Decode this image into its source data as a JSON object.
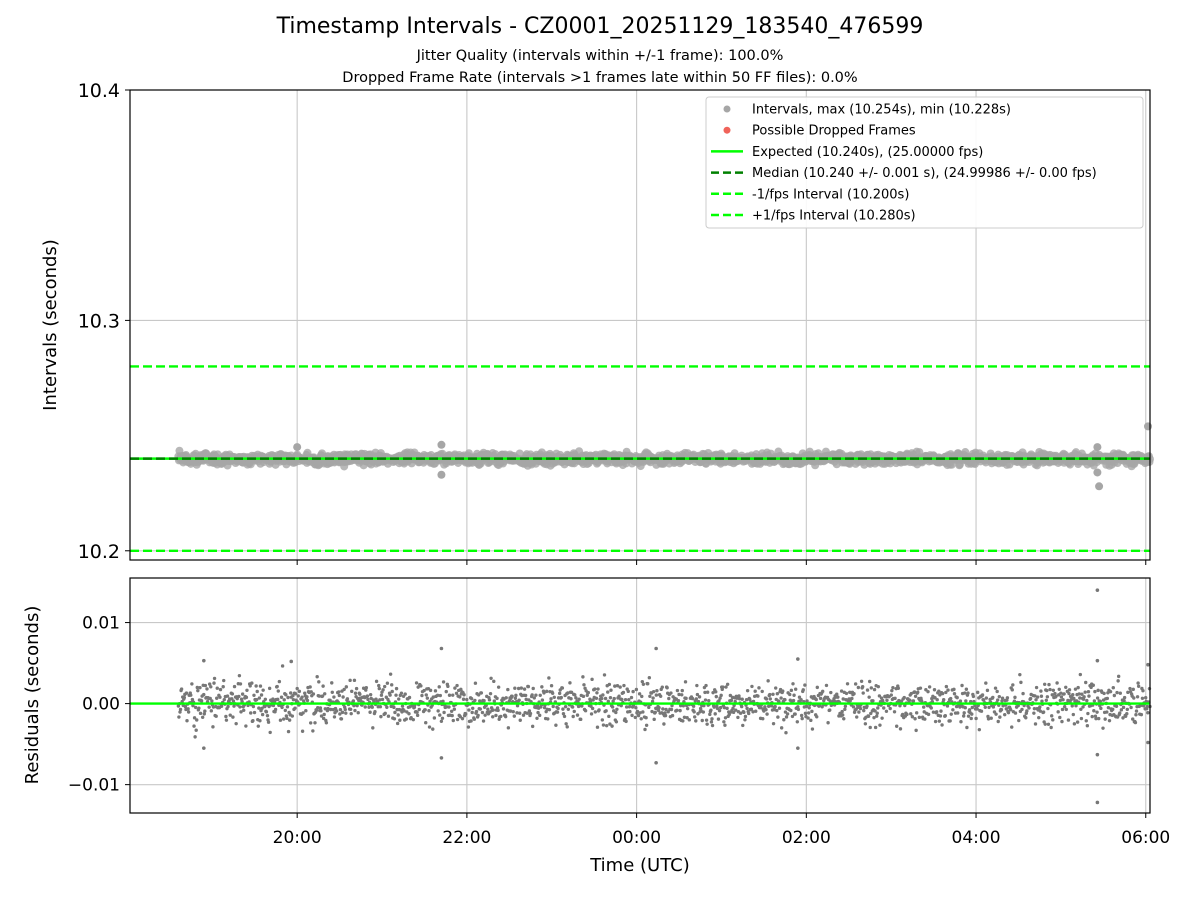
{
  "chart_data": [
    {
      "type": "scatter",
      "panel": "intervals",
      "title": "Timestamp Intervals - CZ0001_20251129_183540_476599",
      "subtitle_lines": [
        "Jitter Quality (intervals within +/-1 frame): 100.0%",
        "Dropped Frame Rate (intervals >1 frames late within 50 FF files): 0.0%"
      ],
      "xlabel": "",
      "ylabel": "Intervals (seconds)",
      "xlim_hours": [
        18.03,
        30.05
      ],
      "ylim": [
        10.196,
        10.4
      ],
      "yticks": [
        10.2,
        10.3,
        10.4
      ],
      "ytick_labels": [
        "10.2",
        "10.3",
        "10.4"
      ],
      "x_start_hours": 18.6,
      "x_end_hours": 30.05,
      "sample_count": 1800,
      "expected": 10.24,
      "median": 10.24,
      "lower_bound": 10.2,
      "upper_bound": 10.28,
      "interval_max": 10.254,
      "interval_min": 10.228,
      "notable_points": [
        {
          "x": 30.1,
          "y": 10.254
        },
        {
          "x": 29.43,
          "y": 10.245
        },
        {
          "x": 29.43,
          "y": 10.234
        },
        {
          "x": 29.45,
          "y": 10.228
        },
        {
          "x": 20.0,
          "y": 10.245
        },
        {
          "x": 21.7,
          "y": 10.246
        },
        {
          "x": 21.7,
          "y": 10.233
        },
        {
          "x": 0.23,
          "y": 10.246
        },
        {
          "x": 0.23,
          "y": 10.233
        }
      ],
      "legend": {
        "position": "top-right",
        "entries": [
          {
            "label": "Intervals, max (10.254s), min (10.228s)",
            "kind": "dot",
            "color": "#a6a6a6"
          },
          {
            "label": "Possible Dropped Frames",
            "kind": "dot",
            "color": "#f0635a"
          },
          {
            "label": "Expected (10.240s), (25.00000 fps)",
            "kind": "solid",
            "color": "#00ff00"
          },
          {
            "label": "Median (10.240 +/- 0.001 s), (24.99986 +/- 0.00 fps)",
            "kind": "dashed",
            "color": "#008000"
          },
          {
            "label": "-1/fps Interval (10.200s)",
            "kind": "dashed",
            "color": "#00ff00"
          },
          {
            "label": "+1/fps Interval (10.280s)",
            "kind": "dashed",
            "color": "#00ff00"
          }
        ]
      }
    },
    {
      "type": "scatter",
      "panel": "residuals",
      "xlabel": "Time (UTC)",
      "ylabel": "Residuals (seconds)",
      "xlim_hours": [
        18.03,
        30.05
      ],
      "ylim": [
        -0.0135,
        0.0155
      ],
      "yticks": [
        0.01,
        0.0,
        -0.01
      ],
      "ytick_labels": [
        "0.01",
        "0.00",
        "−0.01"
      ],
      "xticks_hours": [
        20,
        22,
        24,
        26,
        28,
        30
      ],
      "xtick_labels": [
        "20:00",
        "22:00",
        "00:00",
        "02:00",
        "04:00",
        "06:00"
      ],
      "zero_line_color": "#00ff00",
      "point_color": "#777777",
      "sample_count": 1800,
      "residual_sd": 0.0012,
      "notable_points": [
        {
          "x": 29.43,
          "y": 0.014
        },
        {
          "x": 29.43,
          "y": -0.0122
        },
        {
          "x": 29.43,
          "y": 0.0053
        },
        {
          "x": 29.43,
          "y": -0.0063
        },
        {
          "x": 21.7,
          "y": 0.0068
        },
        {
          "x": 21.7,
          "y": -0.0067
        },
        {
          "x": 24.23,
          "y": 0.0068
        },
        {
          "x": 24.23,
          "y": -0.0073
        },
        {
          "x": 19.93,
          "y": 0.0052
        },
        {
          "x": 25.9,
          "y": 0.0055
        },
        {
          "x": 25.9,
          "y": -0.0055
        },
        {
          "x": 18.9,
          "y": 0.0053
        },
        {
          "x": 18.9,
          "y": -0.0055
        },
        {
          "x": 30.05,
          "y": 0.0048
        },
        {
          "x": 30.05,
          "y": -0.0048
        }
      ]
    }
  ]
}
